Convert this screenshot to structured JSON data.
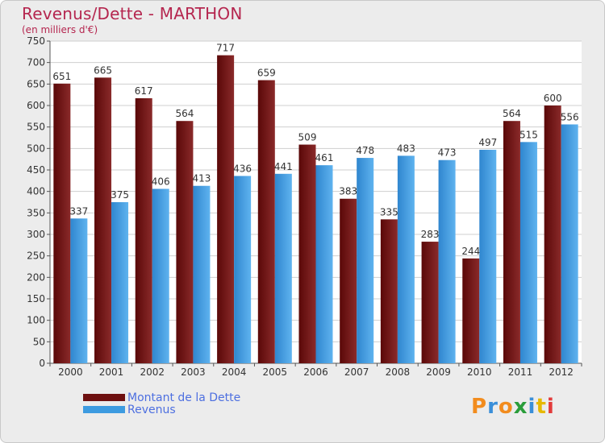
{
  "header": {
    "title": "Revenus/Dette - MARTHON",
    "subtitle": "(en milliers d'€)"
  },
  "colors": {
    "debt": "#6e1010",
    "revenue": "#3d9be0",
    "title": "#b5264f",
    "legend_text": "#4d6fe0"
  },
  "logo": {
    "text": "Proxiti",
    "letter_colors": [
      "#f28c1e",
      "#3a8fd9",
      "#f28c1e",
      "#2a9d3a",
      "#3a8fd9",
      "#e6b800",
      "#e23b3b"
    ]
  },
  "chart_data": {
    "type": "bar",
    "categories": [
      "2000",
      "2001",
      "2002",
      "2003",
      "2004",
      "2005",
      "2006",
      "2007",
      "2008",
      "2009",
      "2010",
      "2011",
      "2012"
    ],
    "series": [
      {
        "name": "Montant de la Dette",
        "values": [
          651,
          665,
          617,
          564,
          717,
          659,
          509,
          383,
          335,
          283,
          244,
          564,
          600
        ]
      },
      {
        "name": "Revenus",
        "values": [
          337,
          375,
          406,
          413,
          436,
          441,
          461,
          478,
          483,
          473,
          497,
          515,
          556
        ]
      }
    ],
    "title": "Revenus/Dette - MARTHON",
    "subtitle": "(en milliers d'€)",
    "ylim": [
      0,
      750
    ],
    "yticks": [
      0,
      50,
      100,
      150,
      200,
      250,
      300,
      350,
      400,
      450,
      500,
      550,
      600,
      650,
      700,
      750
    ],
    "grid": true,
    "legend": "bottom-left"
  }
}
